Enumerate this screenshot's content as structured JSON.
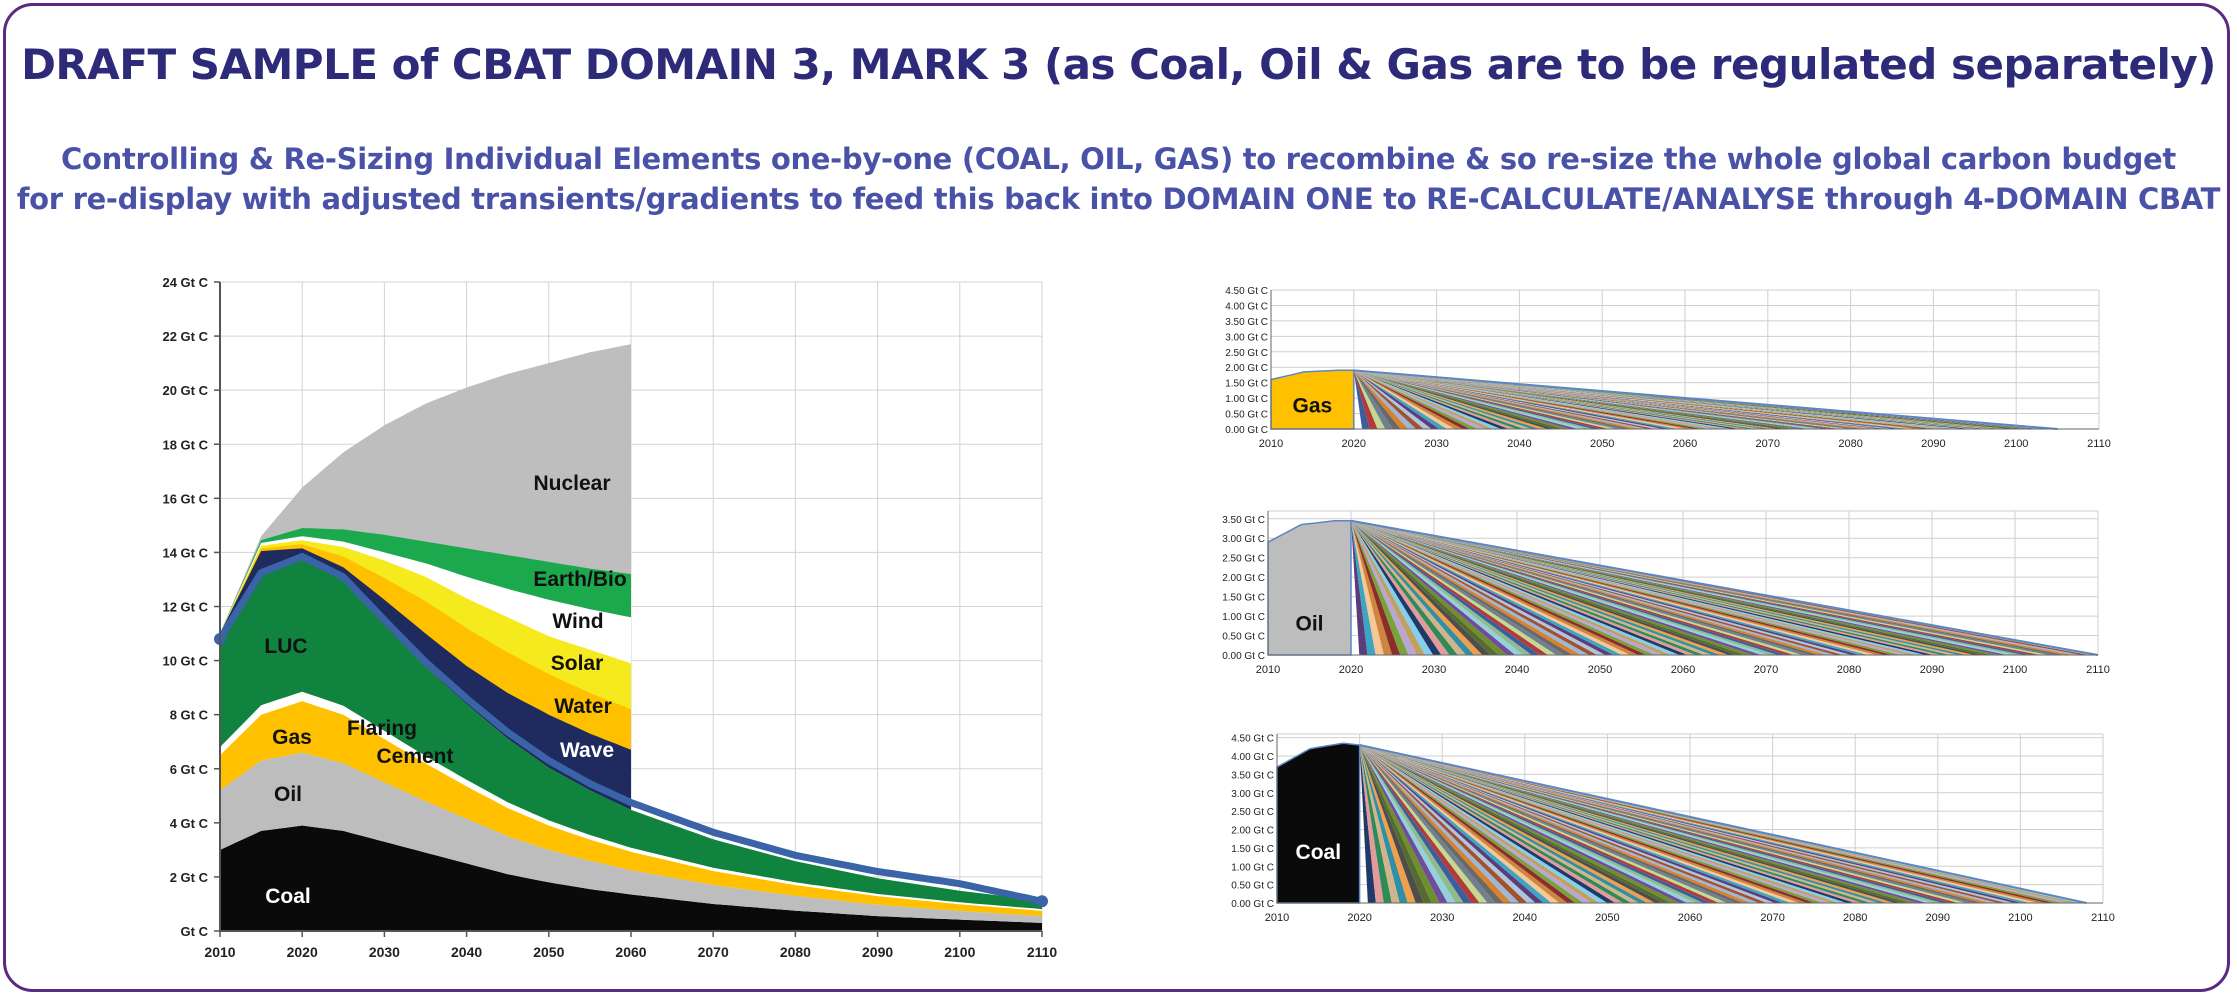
{
  "title": "DRAFT SAMPLE of CBAT DOMAIN 3, MARK 3 (as Coal, Oil & Gas are to be regulated separately)",
  "subtitle_line1": "Controlling & Re-Sizing Individual Elements one-by-one (COAL, OIL, GAS) to recombine & so re-size the whole global carbon budget",
  "subtitle_line2": "for re-display with adjusted transients/gradients to feed this back into DOMAIN ONE to RE-CALCULATE/ANALYSE through 4-DOMAIN CBAT",
  "chart_data": [
    {
      "type": "area",
      "stacked": true,
      "x": [
        2010,
        2015,
        2020,
        2025,
        2030,
        2035,
        2040,
        2045,
        2050,
        2055,
        2060,
        2070,
        2080,
        2090,
        2100,
        2110
      ],
      "xticks": [
        "2010",
        "2020",
        "2030",
        "2040",
        "2050",
        "2060",
        "2070",
        "2080",
        "2090",
        "2100",
        "2110"
      ],
      "yticks": [
        "Gt C",
        "2 Gt C",
        "4 Gt C",
        "6 Gt C",
        "8 Gt C",
        "10 Gt C",
        "12 Gt C",
        "14 Gt C",
        "16 Gt C",
        "18 Gt C",
        "20 Gt C",
        "22 Gt C",
        "24 Gt C"
      ],
      "ylim": [
        0,
        24
      ],
      "grid": true,
      "series": [
        {
          "name": "Coal",
          "color": "#0a0a0a",
          "values": [
            3.0,
            3.7,
            3.9,
            3.7,
            3.3,
            2.9,
            2.5,
            2.1,
            1.8,
            1.55,
            1.35,
            1.0,
            0.75,
            0.55,
            0.42,
            0.3
          ]
        },
        {
          "name": "Oil",
          "color": "#bdbdbd",
          "values": [
            2.2,
            2.6,
            2.7,
            2.5,
            2.2,
            1.9,
            1.65,
            1.4,
            1.2,
            1.05,
            0.9,
            0.7,
            0.55,
            0.42,
            0.32,
            0.25
          ]
        },
        {
          "name": "Gas",
          "color": "#ffc000",
          "values": [
            1.3,
            1.7,
            1.9,
            1.8,
            1.6,
            1.4,
            1.2,
            1.05,
            0.9,
            0.78,
            0.68,
            0.52,
            0.4,
            0.32,
            0.25,
            0.2
          ]
        },
        {
          "name": "Flaring",
          "color": "#ffffff",
          "values": [
            0.3,
            0.35,
            0.35,
            0.33,
            0.3,
            0.27,
            0.24,
            0.21,
            0.19,
            0.17,
            0.15,
            0.12,
            0.1,
            0.08,
            0.07,
            0.06
          ]
        },
        {
          "name": "Cement",
          "color": "#ffffff",
          "values": [
            0.0,
            0.0,
            0.0,
            0.0,
            0.0,
            0.0,
            0.0,
            0.0,
            0.0,
            0.0,
            0.0,
            0.0,
            0.0,
            0.0,
            0.0,
            0.0
          ]
        },
        {
          "name": "LUC",
          "color": "#10843e",
          "values": [
            4.0,
            4.9,
            5.0,
            4.6,
            3.9,
            3.3,
            2.8,
            2.35,
            1.95,
            1.65,
            1.4,
            1.05,
            0.78,
            0.58,
            0.43,
            0.3
          ]
        }
      ],
      "upper_bands_to_2060": [
        {
          "name": "Wave",
          "color": "#1f2a5e",
          "top": [
            11.0,
            14.05,
            14.15,
            13.45,
            12.25,
            11.0,
            9.8,
            8.8,
            8.0,
            7.3,
            6.7
          ]
        },
        {
          "name": "Water",
          "color": "#ffc000",
          "top": [
            11.0,
            14.15,
            14.3,
            13.85,
            13.05,
            12.2,
            11.2,
            10.3,
            9.5,
            8.8,
            8.2
          ]
        },
        {
          "name": "Solar",
          "color": "#f5ea1d",
          "top": [
            11.0,
            14.25,
            14.45,
            14.2,
            13.7,
            13.1,
            12.3,
            11.6,
            10.9,
            10.4,
            9.9
          ]
        },
        {
          "name": "Wind",
          "color": "#ffffff",
          "top": [
            11.0,
            14.35,
            14.6,
            14.4,
            14.0,
            13.6,
            13.1,
            12.65,
            12.25,
            11.9,
            11.6
          ]
        },
        {
          "name": "Earth/Bio",
          "color": "#1ca84c",
          "top": [
            11.0,
            14.45,
            14.9,
            14.85,
            14.65,
            14.4,
            14.15,
            13.9,
            13.65,
            13.4,
            13.2
          ]
        },
        {
          "name": "Nuclear",
          "color": "#bebebe",
          "top": [
            11.0,
            14.6,
            16.4,
            17.7,
            18.7,
            19.5,
            20.1,
            20.6,
            21.0,
            21.4,
            21.7
          ]
        }
      ],
      "total_line": {
        "color": "#3a63a8",
        "values": [
          10.8,
          13.25,
          13.85,
          13.1,
          11.5,
          9.95,
          8.6,
          7.35,
          6.3,
          5.45,
          4.75,
          3.65,
          2.8,
          2.2,
          1.75,
          1.1
        ]
      },
      "labels": [
        "Nuclear",
        "Earth/Bio",
        "Wind",
        "Solar",
        "Water",
        "Wave",
        "LUC",
        "Flaring",
        "Cement",
        "Gas",
        "Oil",
        "Coal"
      ]
    },
    {
      "type": "area",
      "name": "Gas",
      "xticks": [
        "2010",
        "2020",
        "2030",
        "2040",
        "2050",
        "2060",
        "2070",
        "2080",
        "2090",
        "2100",
        "2110"
      ],
      "yticks": [
        "0.00 Gt C",
        "0.50 Gt C",
        "1.00 Gt C",
        "1.50 Gt C",
        "2.00 Gt C",
        "2.50 Gt C",
        "3.00 Gt C",
        "3.50 Gt C",
        "4.00 Gt C",
        "4.50 Gt C"
      ],
      "ylim": [
        0,
        4.5
      ],
      "history": {
        "x": [
          2010,
          2014,
          2018,
          2020
        ],
        "y": [
          1.6,
          1.85,
          1.9,
          1.9
        ]
      },
      "peak": {
        "x": 2020,
        "y": 1.9
      },
      "fan_end_years": [
        2021,
        2105
      ],
      "label": "Gas",
      "fill": "#ffc000"
    },
    {
      "type": "area",
      "name": "Oil",
      "xticks": [
        "2010",
        "2020",
        "2030",
        "2040",
        "2050",
        "2060",
        "2070",
        "2080",
        "2090",
        "2100",
        "2110"
      ],
      "yticks": [
        "0.00 Gt C",
        "0.50 Gt C",
        "1.00 Gt C",
        "1.50 Gt C",
        "2.00 Gt C",
        "2.50 Gt C",
        "3.00 Gt C",
        "3.50 Gt C"
      ],
      "ylim": [
        0,
        3.7
      ],
      "history": {
        "x": [
          2010,
          2014,
          2018,
          2020
        ],
        "y": [
          2.9,
          3.35,
          3.45,
          3.45
        ]
      },
      "peak": {
        "x": 2020,
        "y": 3.45
      },
      "fan_end_years": [
        2021,
        2110
      ],
      "label": "Oil",
      "fill": "#bdbdbd"
    },
    {
      "type": "area",
      "name": "Coal",
      "xticks": [
        "2010",
        "2020",
        "2030",
        "2040",
        "2050",
        "2060",
        "2070",
        "2080",
        "2090",
        "2100",
        "2110"
      ],
      "yticks": [
        "0.00 Gt C",
        "0.50 Gt C",
        "1.00 Gt C",
        "1.50 Gt C",
        "2.00 Gt C",
        "2.50 Gt C",
        "3.00 Gt C",
        "3.50 Gt C",
        "4.00 Gt C",
        "4.50 Gt C"
      ],
      "ylim": [
        0,
        4.6
      ],
      "history": {
        "x": [
          2010,
          2014,
          2018,
          2020
        ],
        "y": [
          3.7,
          4.2,
          4.35,
          4.3
        ]
      },
      "peak": {
        "x": 2020,
        "y": 4.3
      },
      "fan_end_years": [
        2021,
        2108
      ],
      "label": "Coal",
      "fill": "#0a0a0a"
    }
  ]
}
